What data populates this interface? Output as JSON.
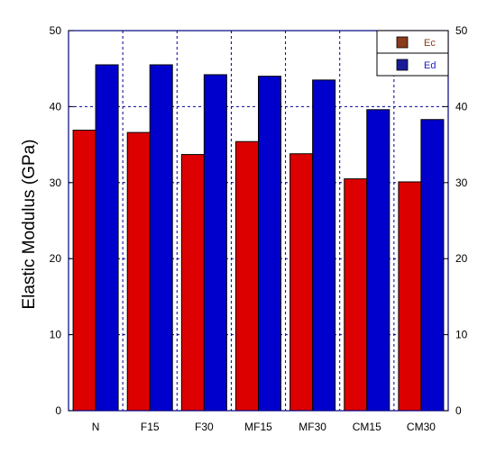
{
  "chart_data": {
    "type": "bar",
    "categories": [
      "N",
      "F15",
      "F30",
      "MF15",
      "MF30",
      "CM15",
      "CM30"
    ],
    "series": [
      {
        "name": "Ec",
        "color": "#dd0000",
        "values": [
          36.9,
          36.6,
          33.7,
          35.4,
          33.8,
          30.5,
          30.1
        ]
      },
      {
        "name": "Ed",
        "color": "#0000cc",
        "values": [
          45.5,
          45.5,
          44.2,
          44.0,
          43.5,
          39.6,
          38.3
        ]
      }
    ],
    "title": "",
    "xlabel": "",
    "ylabel": "Elastic Modulus (GPa)",
    "ylim": [
      0,
      50
    ],
    "yticks": [
      0,
      10,
      20,
      30,
      40,
      50
    ],
    "right_axis_ticks": true,
    "grid": "dashed",
    "legend_position": "top-right",
    "legend_swatch_colors": [
      "#8b3a1a",
      "#1a1a99"
    ],
    "legend_text_colors": [
      "#8b3a1a",
      "#1a1acc"
    ],
    "frame_color": "#000080",
    "grid_color": "#000099"
  }
}
